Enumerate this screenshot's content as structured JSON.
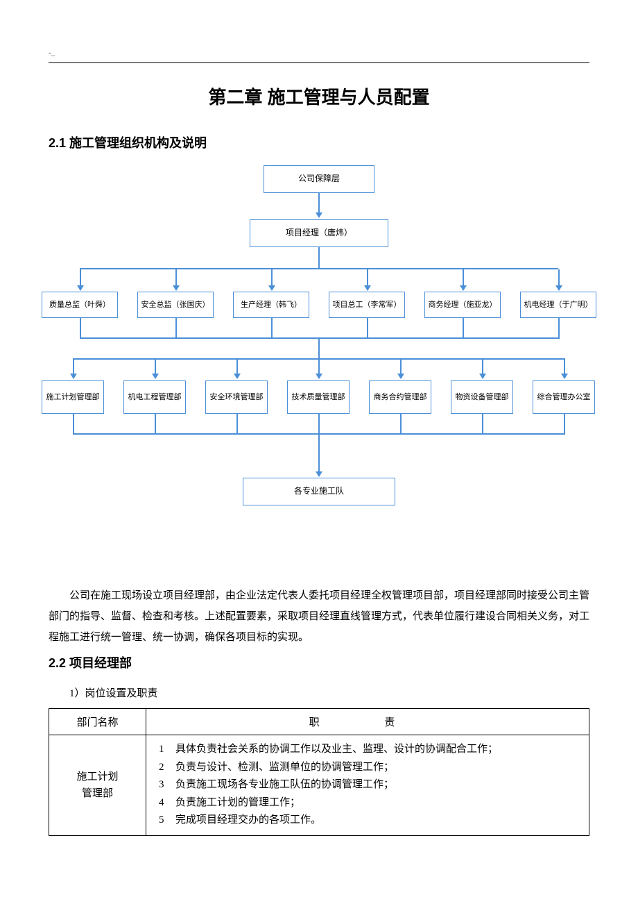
{
  "header_mark": "-_",
  "chapter_title": "第二章 施工管理与人员配置",
  "section_2_1": "2.1 施工管理组织机构及说明",
  "flowchart": {
    "type": "flowchart",
    "border_color": "#4a8fd8",
    "line_color": "#4a8fd8",
    "background_color": "#ffffff",
    "font_size": 12,
    "level1": {
      "label": "公司保障层"
    },
    "level2": {
      "label": "项目经理（唐炜）"
    },
    "level3": [
      {
        "label": "质量总监（叶舜）"
      },
      {
        "label": "安全总监（张国庆）"
      },
      {
        "label": "生产经理（韩飞）"
      },
      {
        "label": "项目总工（李常军）"
      },
      {
        "label": "商务经理（施亚龙）"
      },
      {
        "label": "机电经理（于广明）"
      }
    ],
    "level4": [
      {
        "label": "施工计划管理部"
      },
      {
        "label": "机电工程管理部"
      },
      {
        "label": "安全环境管理部"
      },
      {
        "label": "技术质量管理部"
      },
      {
        "label": "商务合约管理部"
      },
      {
        "label": "物资设备管理部"
      },
      {
        "label": "综合管理办公室"
      }
    ],
    "level5": {
      "label": "各专业施工队"
    }
  },
  "paragraph_1": "公司在施工现场设立项目经理部，由企业法定代表人委托项目经理全权管理项目部，项目经理部同时接受公司主管部门的指导、监督、检查和考核。上述配置要素，采取项目经理直线管理方式，代表单位履行建设合同相关义务，对工程施工进行统一管理、统一协调，确保各项目标的实现。",
  "section_2_2": "2.2 项目经理部",
  "subsection_2_2_1": "1）岗位设置及职责",
  "table": {
    "headers": {
      "dept": "部门名称",
      "duty": "职    责"
    },
    "rows": [
      {
        "dept": "施工计划\n管理部",
        "duties": [
          "具体负责社会关系的协调工作以及业主、监理、设计的协调配合工作；",
          "负责与设计、检测、监测单位的协调管理工作；",
          "负责施工现场各专业施工队伍的协调管理工作；",
          "负责施工计划的管理工作；",
          "完成项目经理交办的各项工作。"
        ]
      }
    ]
  }
}
